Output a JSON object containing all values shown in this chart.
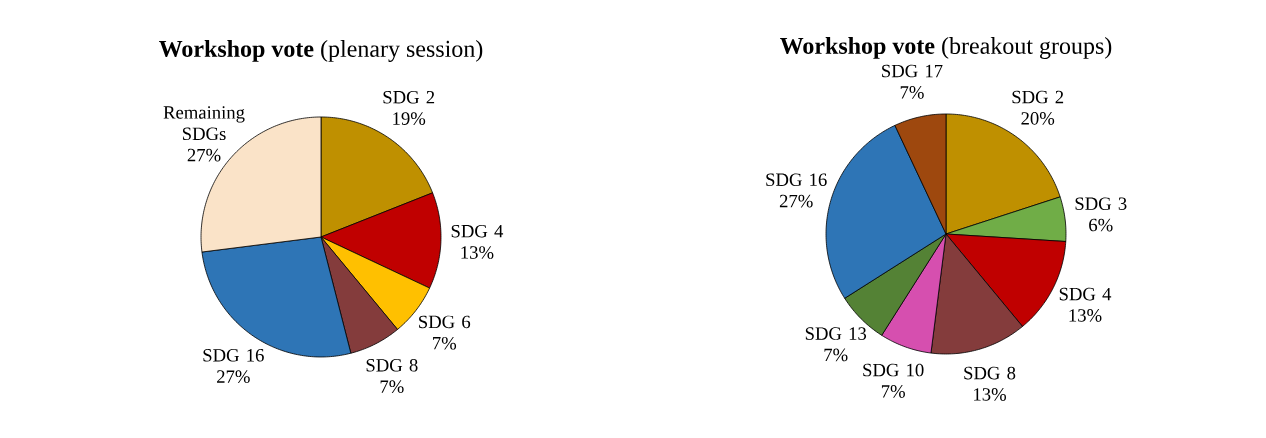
{
  "chart_data": [
    {
      "type": "pie",
      "title": "**Workshop vote** (plenary session)",
      "categories": [
        "SDG 2",
        "SDG 4",
        "SDG 6",
        "SDG 8",
        "SDG 16",
        "Remaining SDGs"
      ],
      "values": [
        19,
        13,
        7,
        7,
        27,
        27
      ],
      "colors": [
        "#bf9000",
        "#c00000",
        "#ffc000",
        "#843c3c",
        "#2e75b6",
        "#fae3c8"
      ],
      "value_labels": [
        "19%",
        "13%",
        "7%",
        "7%",
        "27%",
        "27%"
      ]
    },
    {
      "type": "pie",
      "title": "**Workshop vote** (breakout groups)",
      "categories": [
        "SDG 2",
        "SDG 3",
        "SDG 4",
        "SDG 8",
        "SDG 10",
        "SDG 13",
        "SDG 16",
        "SDG 17"
      ],
      "values": [
        20,
        6,
        13,
        13,
        7,
        7,
        27,
        7
      ],
      "colors": [
        "#bf9000",
        "#70ad47",
        "#c00000",
        "#843c3c",
        "#d64faf",
        "#548235",
        "#2e75b6",
        "#9e480e"
      ],
      "value_labels": [
        "20%",
        "6%",
        "13%",
        "13%",
        "7%",
        "7%",
        "27%",
        "7%"
      ]
    }
  ]
}
